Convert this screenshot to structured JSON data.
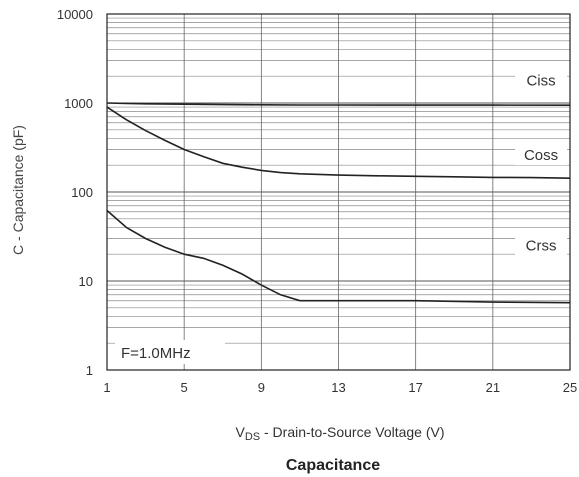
{
  "chart_data": {
    "type": "line",
    "title": "Capacitance",
    "xlabel": {
      "prefix": "V",
      "subscript": "DS",
      "rest": " - Drain-to-Source Voltage (V)"
    },
    "ylabel": "C - Capacitance (pF)",
    "x_scale": "linear",
    "y_scale": "log",
    "xlim": [
      1,
      25
    ],
    "ylim": [
      1,
      10000
    ],
    "x_ticks": [
      1,
      5,
      9,
      13,
      17,
      21,
      25
    ],
    "x_tick_labels": [
      "1",
      "5",
      "9",
      "13",
      "17",
      "21",
      "25"
    ],
    "y_ticks": [
      1,
      10,
      100,
      1000,
      10000
    ],
    "y_tick_labels": [
      "1",
      "10",
      "100",
      "1000",
      "10000"
    ],
    "grid": true,
    "annotation": "F=1.0MHz",
    "series": [
      {
        "name": "Ciss",
        "x": [
          1,
          2,
          3,
          5,
          7,
          9,
          11,
          13,
          17,
          21,
          25
        ],
        "y": [
          1000,
          990,
          980,
          970,
          960,
          955,
          950,
          950,
          948,
          946,
          945
        ]
      },
      {
        "name": "Coss",
        "x": [
          1,
          2,
          3,
          4,
          5,
          6,
          7,
          8,
          9,
          10,
          11,
          13,
          15,
          17,
          19,
          21,
          23,
          25
        ],
        "y": [
          900,
          650,
          490,
          380,
          300,
          250,
          210,
          190,
          175,
          165,
          160,
          155,
          152,
          150,
          148,
          146,
          145,
          143
        ]
      },
      {
        "name": "Crss",
        "x": [
          1,
          2,
          3,
          4,
          5,
          6,
          7,
          8,
          9,
          10,
          11,
          13,
          17,
          21,
          25
        ],
        "y": [
          62,
          40,
          30,
          24,
          20,
          18,
          15,
          12,
          9,
          7,
          6,
          6,
          6,
          5.8,
          5.7
        ]
      }
    ]
  }
}
